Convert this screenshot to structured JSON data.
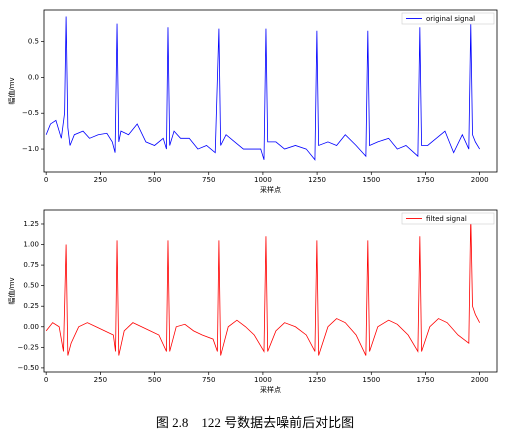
{
  "chart_data": [
    {
      "type": "line",
      "xlabel": "采样点",
      "ylabel": "幅值/mv",
      "legend": "upper right",
      "xlim": [
        -10,
        2080
      ],
      "ylim": [
        -1.32,
        0.94
      ],
      "xticks": [
        0,
        250,
        500,
        750,
        1000,
        1250,
        1500,
        1750,
        2000
      ],
      "yticks": [
        {
          "value": -1.0,
          "label": "−1.0"
        },
        {
          "value": -0.5,
          "label": "−0.5"
        },
        {
          "value": 0,
          "label": "0.0"
        },
        0.5
      ],
      "x": [
        0,
        20,
        45,
        70,
        85,
        92,
        100,
        110,
        130,
        170,
        200,
        240,
        280,
        305,
        318,
        327,
        335,
        345,
        380,
        420,
        460,
        500,
        540,
        555,
        562,
        570,
        590,
        620,
        660,
        700,
        740,
        780,
        797,
        805,
        830,
        870,
        910,
        950,
        990,
        1005,
        1014,
        1022,
        1060,
        1100,
        1150,
        1200,
        1240,
        1249,
        1257,
        1300,
        1340,
        1380,
        1430,
        1475,
        1484,
        1492,
        1530,
        1580,
        1620,
        1660,
        1715,
        1724,
        1732,
        1760,
        1800,
        1840,
        1880,
        1920,
        1950,
        1959,
        1967,
        1980,
        2000
      ],
      "series": [
        {
          "name": "original signal",
          "color": "#0000ff",
          "values": [
            -0.8,
            -0.65,
            -0.6,
            -0.85,
            -0.5,
            0.85,
            -0.7,
            -0.95,
            -0.8,
            -0.75,
            -0.85,
            -0.8,
            -0.78,
            -0.9,
            -1.05,
            0.75,
            -0.9,
            -0.75,
            -0.8,
            -0.65,
            -0.9,
            -0.95,
            -0.85,
            -1.0,
            0.7,
            -0.95,
            -0.75,
            -0.85,
            -0.85,
            -1.0,
            -0.95,
            -1.05,
            0.68,
            -0.95,
            -0.8,
            -0.9,
            -1.0,
            -1.0,
            -1.0,
            -1.15,
            0.68,
            -0.9,
            -0.9,
            -1.0,
            -0.95,
            -1.0,
            -1.15,
            0.65,
            -0.95,
            -0.9,
            -0.95,
            -0.8,
            -0.95,
            -1.1,
            0.65,
            -0.95,
            -0.9,
            -0.85,
            -1.0,
            -0.95,
            -1.1,
            0.7,
            -0.95,
            -0.95,
            -0.85,
            -0.75,
            -1.05,
            -0.8,
            -1.0,
            0.75,
            -0.8,
            -0.9,
            -1.0
          ]
        }
      ]
    },
    {
      "type": "line",
      "xlabel": "采样点",
      "ylabel": "幅值/mv",
      "legend": "upper right",
      "xlim": [
        -10,
        2080
      ],
      "ylim": [
        -0.55,
        1.42
      ],
      "xticks": [
        0,
        250,
        500,
        750,
        1000,
        1250,
        1500,
        1750,
        2000
      ],
      "yticks": [
        {
          "value": -0.5,
          "label": "−0.50"
        },
        {
          "value": -0.25,
          "label": "−0.25"
        },
        {
          "value": 0,
          "label": "0.00"
        },
        {
          "value": 0.25,
          "label": "0.25"
        },
        {
          "value": 0.5,
          "label": "0.50"
        },
        {
          "value": 0.75,
          "label": "0.75"
        },
        {
          "value": 1,
          "label": "1.00"
        },
        1.25
      ],
      "x": [
        0,
        30,
        60,
        80,
        92,
        100,
        115,
        150,
        190,
        230,
        270,
        310,
        320,
        327,
        335,
        360,
        400,
        440,
        480,
        520,
        555,
        562,
        570,
        600,
        640,
        680,
        720,
        770,
        790,
        797,
        805,
        840,
        880,
        920,
        960,
        1005,
        1014,
        1022,
        1060,
        1100,
        1150,
        1200,
        1240,
        1249,
        1257,
        1300,
        1340,
        1380,
        1430,
        1475,
        1484,
        1492,
        1530,
        1580,
        1620,
        1670,
        1715,
        1724,
        1732,
        1770,
        1810,
        1850,
        1900,
        1950,
        1959,
        1967,
        1980,
        2000
      ],
      "series": [
        {
          "name": "filted signal",
          "color": "#ff0000",
          "values": [
            -0.05,
            0.05,
            0.0,
            -0.3,
            1.0,
            -0.35,
            -0.2,
            0.0,
            0.05,
            0.0,
            -0.05,
            -0.1,
            -0.3,
            1.05,
            -0.35,
            -0.05,
            0.05,
            0.0,
            -0.05,
            -0.1,
            -0.3,
            1.05,
            -0.3,
            0.0,
            0.03,
            -0.05,
            -0.1,
            -0.15,
            -0.3,
            1.05,
            -0.35,
            0.0,
            0.08,
            0.0,
            -0.1,
            -0.3,
            1.1,
            -0.3,
            -0.05,
            0.05,
            0.0,
            -0.1,
            -0.3,
            1.05,
            -0.35,
            0.0,
            0.1,
            0.05,
            -0.1,
            -0.35,
            1.05,
            -0.3,
            0.0,
            0.08,
            0.03,
            -0.1,
            -0.3,
            1.1,
            -0.3,
            0.0,
            0.1,
            0.05,
            -0.1,
            -0.2,
            1.35,
            0.25,
            0.15,
            0.05
          ]
        }
      ]
    }
  ],
  "caption": "图 2.8    122 号数据去噪前后对比图"
}
